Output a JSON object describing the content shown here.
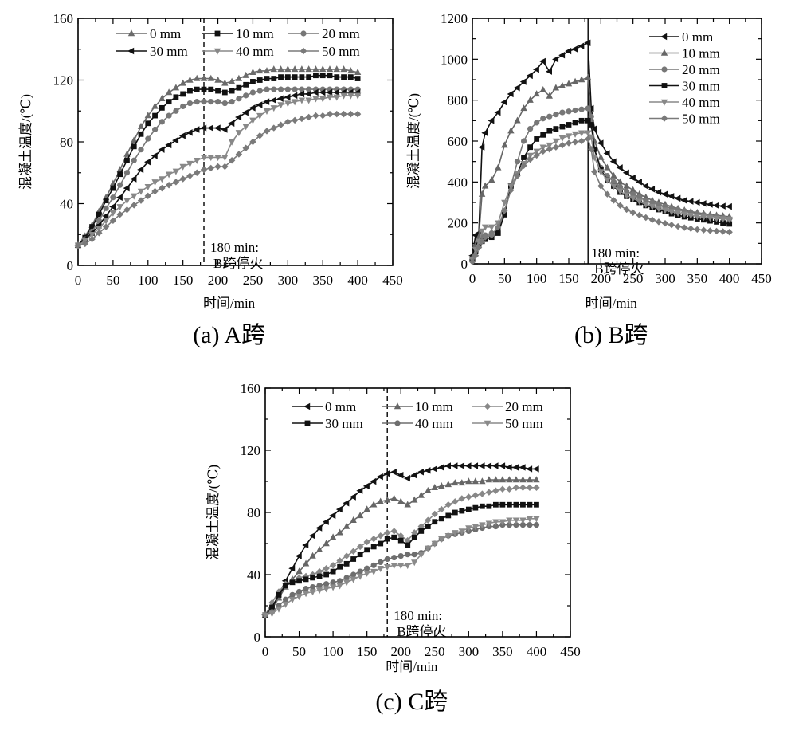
{
  "figure": {
    "captions": [
      "(a) A跨",
      "(b) B跨",
      "(c) C跨"
    ]
  },
  "chart_data": [
    {
      "id": "a",
      "type": "line",
      "title": "(a) A跨",
      "xlabel": "时间/min",
      "ylabel": "混凝土温度/(℃)",
      "xlim": [
        0,
        450
      ],
      "ylim": [
        0,
        160
      ],
      "xticks": [
        0,
        50,
        100,
        150,
        200,
        250,
        300,
        350,
        400,
        450
      ],
      "yticks": [
        0,
        40,
        80,
        120,
        160
      ],
      "grid": false,
      "legend": {
        "placement": "top",
        "columns": 3
      },
      "annotation": {
        "x": 180,
        "line_style": "dashed",
        "lines": [
          "180 min:",
          "B跨停火"
        ]
      },
      "x": [
        0,
        10,
        20,
        30,
        40,
        50,
        60,
        70,
        80,
        90,
        100,
        110,
        120,
        130,
        140,
        150,
        160,
        170,
        180,
        190,
        200,
        210,
        220,
        230,
        240,
        250,
        260,
        270,
        280,
        290,
        300,
        310,
        320,
        330,
        340,
        350,
        360,
        370,
        380,
        390,
        400
      ],
      "series": [
        {
          "name": "0 mm",
          "marker": "triangle-up",
          "color": "#6b6b6b",
          "values": [
            13,
            19,
            26,
            35,
            44,
            53,
            62,
            72,
            81,
            90,
            97,
            103,
            108,
            112,
            115,
            118,
            120,
            121,
            121,
            121,
            120,
            118,
            119,
            121,
            123,
            125,
            126,
            126,
            127,
            127,
            127,
            127,
            127,
            127,
            127,
            127,
            127,
            127,
            127,
            126,
            125
          ]
        },
        {
          "name": "10 mm",
          "marker": "square",
          "color": "#111111",
          "values": [
            13,
            18,
            25,
            33,
            42,
            50,
            59,
            68,
            77,
            85,
            92,
            97,
            102,
            106,
            109,
            111,
            113,
            114,
            114,
            114,
            113,
            112,
            113,
            115,
            117,
            119,
            120,
            121,
            121,
            122,
            122,
            122,
            122,
            122,
            123,
            123,
            123,
            122,
            122,
            122,
            121
          ]
        },
        {
          "name": "20 mm",
          "marker": "circle",
          "color": "#777777",
          "values": [
            13,
            17,
            22,
            29,
            37,
            44,
            52,
            60,
            68,
            75,
            82,
            88,
            93,
            97,
            100,
            103,
            105,
            106,
            106,
            106,
            106,
            105,
            106,
            108,
            110,
            112,
            113,
            114,
            114,
            114,
            114,
            114,
            114,
            114,
            114,
            114,
            114,
            114,
            114,
            114,
            114
          ]
        },
        {
          "name": "30 mm",
          "marker": "triangle-left",
          "color": "#111111",
          "values": [
            13,
            17,
            21,
            26,
            32,
            38,
            44,
            50,
            56,
            62,
            67,
            71,
            75,
            78,
            81,
            84,
            86,
            88,
            89,
            89,
            89,
            88,
            92,
            96,
            99,
            102,
            104,
            106,
            107,
            108,
            109,
            110,
            111,
            111,
            112,
            112,
            112,
            112,
            112,
            112,
            112
          ]
        },
        {
          "name": "40 mm",
          "marker": "triangle-down",
          "color": "#888888",
          "values": [
            13,
            16,
            20,
            24,
            29,
            34,
            38,
            42,
            45,
            48,
            51,
            54,
            56,
            59,
            61,
            64,
            66,
            68,
            70,
            70,
            70,
            70,
            80,
            86,
            90,
            94,
            97,
            100,
            102,
            104,
            105,
            106,
            107,
            107,
            108,
            108,
            109,
            109,
            110,
            110,
            110
          ]
        },
        {
          "name": "50 mm",
          "marker": "diamond",
          "color": "#7a7a7a",
          "values": [
            13,
            14,
            17,
            21,
            25,
            29,
            33,
            36,
            39,
            42,
            45,
            48,
            50,
            52,
            54,
            56,
            58,
            60,
            62,
            63,
            64,
            64,
            68,
            72,
            76,
            80,
            84,
            87,
            89,
            91,
            93,
            94,
            95,
            96,
            97,
            97,
            98,
            98,
            98,
            98,
            98
          ]
        }
      ]
    },
    {
      "id": "b",
      "type": "line",
      "title": "(b) B跨",
      "xlabel": "时间/min",
      "ylabel": "混凝土温度/(℃)",
      "xlim": [
        0,
        450
      ],
      "ylim": [
        0,
        1200
      ],
      "xticks": [
        0,
        50,
        100,
        150,
        200,
        250,
        300,
        350,
        400,
        450
      ],
      "yticks": [
        0,
        200,
        400,
        600,
        800,
        1000,
        1200
      ],
      "grid": false,
      "legend": {
        "placement": "top-right",
        "columns": 1
      },
      "annotation": {
        "x": 180,
        "line_style": "solid",
        "lines": [
          "180 min:",
          "B跨停火"
        ]
      },
      "x": [
        0,
        5,
        10,
        15,
        20,
        30,
        40,
        50,
        60,
        70,
        80,
        90,
        100,
        110,
        120,
        130,
        140,
        150,
        160,
        170,
        180,
        185,
        190,
        200,
        210,
        220,
        230,
        240,
        250,
        260,
        270,
        280,
        290,
        300,
        310,
        320,
        330,
        340,
        350,
        360,
        370,
        380,
        390,
        400
      ],
      "series": [
        {
          "name": "0 mm",
          "marker": "triangle-left",
          "color": "#111111",
          "values": [
            40,
            140,
            150,
            570,
            640,
            700,
            740,
            790,
            830,
            860,
            890,
            920,
            950,
            990,
            940,
            1000,
            1020,
            1040,
            1050,
            1065,
            1080,
            760,
            660,
            590,
            540,
            500,
            470,
            445,
            420,
            400,
            380,
            365,
            350,
            340,
            330,
            320,
            310,
            305,
            300,
            295,
            290,
            285,
            282,
            280
          ]
        },
        {
          "name": "10 mm",
          "marker": "triangle-up",
          "color": "#666666",
          "values": [
            30,
            90,
            130,
            340,
            380,
            410,
            470,
            580,
            650,
            700,
            760,
            800,
            830,
            850,
            820,
            860,
            870,
            880,
            890,
            900,
            910,
            700,
            600,
            520,
            470,
            430,
            400,
            380,
            360,
            340,
            325,
            310,
            300,
            290,
            280,
            270,
            262,
            255,
            250,
            245,
            240,
            237,
            234,
            230
          ]
        },
        {
          "name": "20 mm",
          "marker": "circle",
          "color": "#777777",
          "values": [
            20,
            60,
            100,
            130,
            140,
            150,
            170,
            250,
            380,
            500,
            600,
            660,
            690,
            710,
            720,
            730,
            740,
            745,
            750,
            755,
            760,
            720,
            560,
            470,
            430,
            400,
            375,
            355,
            340,
            325,
            310,
            300,
            290,
            280,
            272,
            265,
            258,
            250,
            245,
            240,
            235,
            230,
            225,
            220
          ]
        },
        {
          "name": "30 mm",
          "marker": "square",
          "color": "#111111",
          "values": [
            20,
            60,
            90,
            110,
            120,
            130,
            150,
            240,
            380,
            440,
            520,
            570,
            610,
            630,
            650,
            660,
            670,
            680,
            690,
            700,
            700,
            680,
            560,
            460,
            410,
            380,
            350,
            330,
            315,
            300,
            285,
            275,
            265,
            255,
            245,
            238,
            230,
            225,
            220,
            215,
            210,
            205,
            200,
            195
          ]
        },
        {
          "name": "40 mm",
          "marker": "triangle-down",
          "color": "#888888",
          "values": [
            20,
            70,
            110,
            160,
            180,
            180,
            200,
            300,
            380,
            440,
            490,
            530,
            550,
            570,
            580,
            600,
            615,
            625,
            635,
            640,
            640,
            620,
            520,
            450,
            410,
            380,
            355,
            335,
            320,
            305,
            290,
            280,
            270,
            262,
            255,
            248,
            242,
            237,
            232,
            228,
            224,
            222,
            220,
            218
          ]
        },
        {
          "name": "50 mm",
          "marker": "diamond",
          "color": "#7a7a7a",
          "values": [
            10,
            40,
            80,
            110,
            130,
            140,
            180,
            260,
            360,
            430,
            480,
            510,
            530,
            550,
            560,
            570,
            580,
            590,
            595,
            600,
            610,
            560,
            450,
            380,
            340,
            310,
            285,
            265,
            250,
            238,
            226,
            215,
            205,
            198,
            190,
            183,
            177,
            172,
            168,
            165,
            162,
            160,
            158,
            155
          ]
        }
      ]
    },
    {
      "id": "c",
      "type": "line",
      "title": "(c) C跨",
      "xlabel": "时间/min",
      "ylabel": "混凝土温度/(℃)",
      "xlim": [
        0,
        450
      ],
      "ylim": [
        0,
        160
      ],
      "xticks": [
        0,
        50,
        100,
        150,
        200,
        250,
        300,
        350,
        400,
        450
      ],
      "yticks": [
        0,
        40,
        80,
        120,
        160
      ],
      "grid": false,
      "legend": {
        "placement": "top",
        "columns": 3
      },
      "annotation": {
        "x": 180,
        "line_style": "dashed",
        "lines": [
          "180 min:",
          "B跨停火"
        ]
      },
      "x": [
        0,
        10,
        20,
        30,
        40,
        50,
        60,
        70,
        80,
        90,
        100,
        110,
        120,
        130,
        140,
        150,
        160,
        170,
        180,
        190,
        200,
        210,
        220,
        230,
        240,
        250,
        260,
        270,
        280,
        290,
        300,
        310,
        320,
        330,
        340,
        350,
        360,
        370,
        380,
        390,
        400
      ],
      "series": [
        {
          "name": "0 mm",
          "marker": "triangle-left",
          "color": "#111111",
          "values": [
            14,
            18,
            27,
            36,
            44,
            52,
            59,
            65,
            70,
            74,
            78,
            82,
            86,
            90,
            94,
            97,
            100,
            103,
            105,
            106,
            104,
            102,
            104,
            106,
            107,
            108,
            109,
            110,
            110,
            110,
            110,
            110,
            110,
            110,
            110,
            110,
            109,
            109,
            109,
            108,
            108
          ]
        },
        {
          "name": "10 mm",
          "marker": "triangle-up",
          "color": "#666666",
          "values": [
            14,
            18,
            25,
            32,
            37,
            42,
            47,
            52,
            56,
            60,
            64,
            67,
            71,
            75,
            78,
            82,
            85,
            87,
            88,
            89,
            87,
            85,
            88,
            91,
            94,
            96,
            97,
            98,
            99,
            99,
            100,
            100,
            100,
            101,
            101,
            101,
            101,
            101,
            101,
            101,
            101
          ]
        },
        {
          "name": "20 mm",
          "marker": "diamond",
          "color": "#888888",
          "values": [
            14,
            22,
            29,
            34,
            36,
            38,
            39,
            40,
            42,
            44,
            46,
            49,
            52,
            55,
            58,
            61,
            63,
            65,
            67,
            68,
            65,
            62,
            67,
            71,
            75,
            79,
            82,
            85,
            87,
            89,
            90,
            91,
            92,
            93,
            94,
            95,
            95,
            96,
            96,
            96,
            96
          ]
        },
        {
          "name": "30 mm",
          "marker": "square",
          "color": "#111111",
          "values": [
            14,
            19,
            27,
            33,
            35,
            36,
            37,
            38,
            39,
            40,
            42,
            45,
            47,
            50,
            53,
            56,
            58,
            60,
            63,
            64,
            62,
            59,
            64,
            68,
            71,
            74,
            76,
            78,
            80,
            81,
            82,
            83,
            84,
            84,
            85,
            85,
            85,
            85,
            85,
            85,
            85
          ]
        },
        {
          "name": "40 mm",
          "marker": "circle",
          "color": "#6e6e6e",
          "values": [
            14,
            16,
            20,
            24,
            27,
            29,
            31,
            32,
            33,
            34,
            35,
            36,
            38,
            40,
            42,
            44,
            46,
            48,
            50,
            51,
            52,
            53,
            53,
            54,
            57,
            60,
            63,
            65,
            66,
            67,
            68,
            69,
            70,
            71,
            71,
            72,
            72,
            72,
            72,
            72,
            72
          ]
        },
        {
          "name": "50 mm",
          "marker": "triangle-down",
          "color": "#8a8a8a",
          "values": [
            14,
            15,
            18,
            21,
            24,
            26,
            28,
            29,
            30,
            31,
            32,
            33,
            35,
            37,
            39,
            41,
            42,
            44,
            45,
            46,
            46,
            46,
            48,
            53,
            57,
            60,
            63,
            65,
            67,
            68,
            70,
            71,
            72,
            73,
            74,
            74,
            75,
            75,
            75,
            76,
            76
          ]
        }
      ]
    }
  ]
}
